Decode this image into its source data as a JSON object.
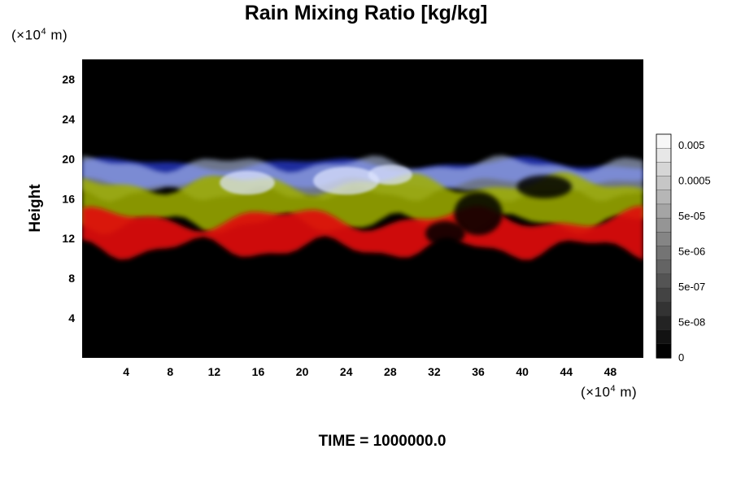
{
  "chart_data": {
    "type": "heatmap",
    "title": "Rain Mixing Ratio [kg/kg]",
    "ylabel": "Height",
    "x_unit": "(×10⁴ m)",
    "y_unit": "(×10⁴ m)",
    "x_unit_base": "(×10",
    "x_unit_exp": "4",
    "x_unit_tail": " m)",
    "y_unit_base": "(×10",
    "y_unit_exp": "4",
    "y_unit_tail": " m)",
    "xlim": [
      0,
      51
    ],
    "ylim": [
      0,
      30
    ],
    "x_ticks": [
      4,
      8,
      12,
      16,
      20,
      24,
      28,
      32,
      36,
      40,
      44,
      48
    ],
    "y_ticks": [
      4,
      8,
      12,
      16,
      20,
      24,
      28
    ],
    "background_color": "#000000",
    "layers": [
      {
        "color": "#2030b0",
        "description_color": "blue",
        "height_range": [
          17.5,
          19.5
        ]
      },
      {
        "color": "#c8d8ff",
        "description_color": "pale blue-white",
        "height_range": [
          16.5,
          19.5
        ]
      },
      {
        "color": "#a0b000",
        "description_color": "yellow-green",
        "height_range": [
          13.5,
          17.5
        ]
      },
      {
        "color": "#e01010",
        "description_color": "red",
        "height_range": [
          11,
          14
        ]
      }
    ],
    "colorbar": {
      "labels": [
        "0.005",
        "0.0005",
        "5e-05",
        "5e-06",
        "5e-07",
        "5e-08",
        "0"
      ],
      "colors": [
        "#ffffff",
        "#000000"
      ]
    }
  },
  "footer": {
    "time_label": "TIME = 1000000.0"
  }
}
